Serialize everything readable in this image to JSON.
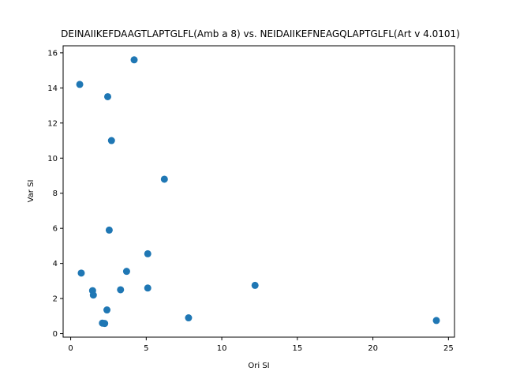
{
  "chart_data": {
    "type": "scatter",
    "title": "DEINAIIKEFDAAGTLAPTGLFL(Amb a 8) vs. NEIDAIIKEFNEAGQLAPTGLFL(Art v 4.0101)",
    "xlabel": "Ori SI",
    "ylabel": "Var SI",
    "xlim": [
      -0.5,
      25.4
    ],
    "ylim": [
      -0.2,
      16.4
    ],
    "xticks": [
      0,
      5,
      10,
      15,
      20,
      25
    ],
    "yticks": [
      0,
      2,
      4,
      6,
      8,
      10,
      12,
      14,
      16
    ],
    "grid": false,
    "marker_color": "#1f77b4",
    "points": [
      {
        "x": 4.2,
        "y": 15.6
      },
      {
        "x": 0.6,
        "y": 14.2
      },
      {
        "x": 2.45,
        "y": 13.5
      },
      {
        "x": 2.7,
        "y": 11.0
      },
      {
        "x": 6.2,
        "y": 8.8
      },
      {
        "x": 2.55,
        "y": 5.9
      },
      {
        "x": 5.1,
        "y": 4.55
      },
      {
        "x": 0.7,
        "y": 3.45
      },
      {
        "x": 3.7,
        "y": 3.55
      },
      {
        "x": 12.2,
        "y": 2.75
      },
      {
        "x": 5.1,
        "y": 2.6
      },
      {
        "x": 3.3,
        "y": 2.5
      },
      {
        "x": 1.45,
        "y": 2.45
      },
      {
        "x": 1.5,
        "y": 2.2
      },
      {
        "x": 2.4,
        "y": 1.35
      },
      {
        "x": 7.8,
        "y": 0.9
      },
      {
        "x": 24.2,
        "y": 0.75
      },
      {
        "x": 2.1,
        "y": 0.6
      },
      {
        "x": 2.25,
        "y": 0.58
      }
    ]
  }
}
